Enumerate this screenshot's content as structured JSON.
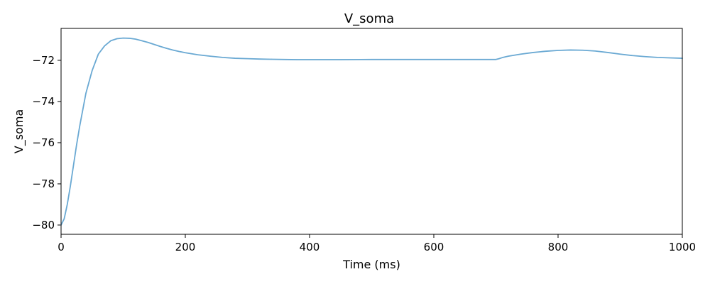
{
  "chart_data": {
    "type": "line",
    "title": "V_soma",
    "xlabel": "Time (ms)",
    "ylabel": "V_soma",
    "xlim": [
      0,
      1000
    ],
    "ylim": [
      -80.45,
      -70.45
    ],
    "grid": false,
    "x_ticks": [
      0,
      200,
      400,
      600,
      800,
      1000
    ],
    "x_tick_labels": [
      "0",
      "200",
      "400",
      "600",
      "800",
      "1000"
    ],
    "y_ticks": [
      -80,
      -78,
      -76,
      -74,
      -72
    ],
    "y_tick_labels": [
      "−80",
      "−78",
      "−76",
      "−74",
      "−72"
    ],
    "series": [
      {
        "color": "#6aa9d3",
        "x": [
          0,
          5,
          10,
          15,
          20,
          25,
          30,
          40,
          50,
          60,
          70,
          80,
          90,
          100,
          110,
          120,
          130,
          140,
          150,
          160,
          170,
          180,
          190,
          200,
          220,
          240,
          260,
          280,
          300,
          320,
          340,
          360,
          380,
          400,
          450,
          500,
          550,
          600,
          650,
          700,
          705,
          710,
          720,
          740,
          760,
          780,
          800,
          820,
          840,
          860,
          880,
          900,
          920,
          940,
          960,
          980,
          1000
        ],
        "y": [
          -80.0,
          -79.7,
          -79.0,
          -78.1,
          -77.1,
          -76.1,
          -75.2,
          -73.6,
          -72.5,
          -71.7,
          -71.3,
          -71.05,
          -70.95,
          -70.92,
          -70.93,
          -70.97,
          -71.05,
          -71.13,
          -71.23,
          -71.33,
          -71.42,
          -71.5,
          -71.57,
          -71.63,
          -71.73,
          -71.8,
          -71.86,
          -71.9,
          -71.92,
          -71.94,
          -71.95,
          -71.96,
          -71.97,
          -71.97,
          -71.97,
          -71.96,
          -71.96,
          -71.96,
          -71.96,
          -71.96,
          -71.92,
          -71.87,
          -71.8,
          -71.7,
          -71.62,
          -71.56,
          -71.52,
          -71.5,
          -71.51,
          -71.55,
          -71.62,
          -71.7,
          -71.77,
          -71.82,
          -71.86,
          -71.88,
          -71.9
        ]
      }
    ]
  }
}
